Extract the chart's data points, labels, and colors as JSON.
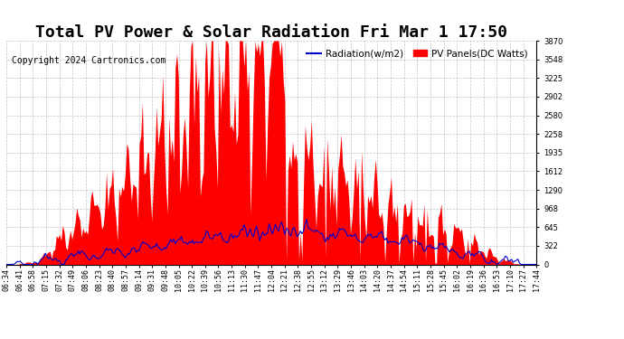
{
  "title": "Total PV Power & Solar Radiation Fri Mar 1 17:50",
  "copyright": "Copyright 2024 Cartronics.com",
  "legend_radiation": "Radiation(w/m2)",
  "legend_pv": "PV Panels(DC Watts)",
  "radiation_color": "#0000cc",
  "pv_color": "#ff0000",
  "background_color": "#ffffff",
  "grid_color": "#aaaaaa",
  "ylim": [
    0,
    3870
  ],
  "yticks": [
    0.0,
    322.5,
    645.0,
    967.5,
    1290.0,
    1612.5,
    1935.0,
    2257.5,
    2580.0,
    2902.5,
    3225.0,
    3547.5,
    3870.0
  ],
  "time_labels": [
    "06:34",
    "06:41",
    "06:58",
    "07:15",
    "07:32",
    "07:49",
    "08:06",
    "08:23",
    "08:40",
    "08:57",
    "09:14",
    "09:31",
    "09:48",
    "10:05",
    "10:22",
    "10:39",
    "10:56",
    "11:13",
    "11:30",
    "11:47",
    "12:04",
    "12:21",
    "12:38",
    "12:55",
    "13:12",
    "13:29",
    "13:46",
    "14:03",
    "14:20",
    "14:37",
    "14:54",
    "15:11",
    "15:28",
    "15:45",
    "16:02",
    "16:19",
    "16:36",
    "16:53",
    "17:10",
    "17:27",
    "17:44"
  ],
  "title_fontsize": 13,
  "tick_fontsize": 6,
  "copyright_fontsize": 7
}
